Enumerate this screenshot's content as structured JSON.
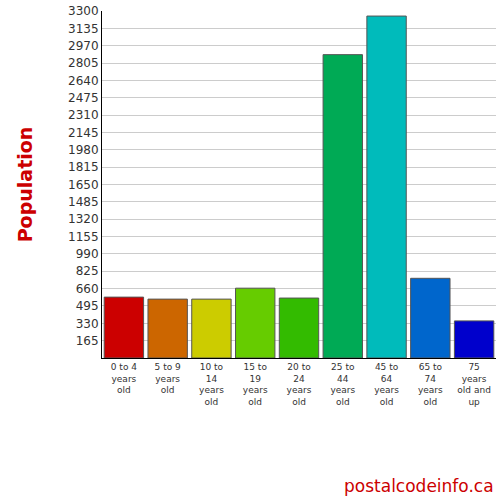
{
  "chart_data": {
    "type": "bar",
    "y_label": "Population",
    "categories": [
      "0 to 4 years old",
      "5 to 9 years old",
      "10 to 14 years old",
      "15 to 19 years old",
      "20 to 24 years old",
      "25 to 44 years old",
      "45 to 64 years old",
      "65 to 74 years old",
      "75 years old and up"
    ],
    "values": [
      579,
      560,
      560,
      664,
      570,
      2885,
      3252,
      758,
      353
    ],
    "colors": [
      "#cc0000",
      "#cc6600",
      "#cccc00",
      "#66cc00",
      "#33bb00",
      "#00aa55",
      "#00bbbb",
      "#0066cc",
      "#0000cc"
    ],
    "ylim": [
      0,
      3300
    ],
    "yticks": [
      165,
      330,
      495,
      660,
      825,
      990,
      1155,
      1320,
      1485,
      1650,
      1815,
      1980,
      2145,
      2310,
      2475,
      2640,
      2805,
      2970,
      3135,
      3300
    ],
    "grid": true,
    "annotations": [
      "postalcodeinfo.ca"
    ]
  }
}
